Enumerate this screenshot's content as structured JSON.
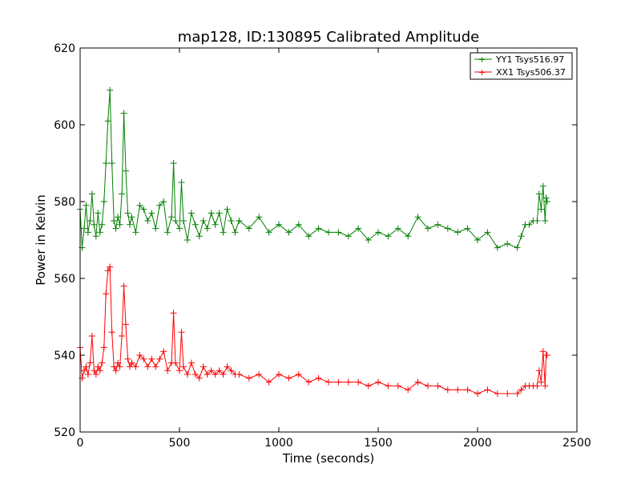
{
  "chart_data": {
    "type": "line",
    "title": "map128, ID:130895 Calibrated Amplitude",
    "xlabel": "Time (seconds)",
    "ylabel": "Power in Kelvin",
    "xlim": [
      0,
      2500
    ],
    "ylim": [
      520,
      620
    ],
    "xticks": [
      0,
      500,
      1000,
      1500,
      2000,
      2500
    ],
    "yticks": [
      520,
      540,
      560,
      580,
      600,
      620
    ],
    "grid": false,
    "legend_position": "top-right",
    "series": [
      {
        "name": "YY1 Tsys516.97",
        "color": "#008000",
        "marker": "+",
        "points": [
          [
            0,
            578
          ],
          [
            10,
            568
          ],
          [
            20,
            573
          ],
          [
            30,
            579
          ],
          [
            40,
            572
          ],
          [
            50,
            575
          ],
          [
            60,
            582
          ],
          [
            70,
            574
          ],
          [
            80,
            571
          ],
          [
            90,
            577
          ],
          [
            100,
            572
          ],
          [
            110,
            574
          ],
          [
            120,
            580
          ],
          [
            130,
            590
          ],
          [
            140,
            601
          ],
          [
            150,
            609
          ],
          [
            160,
            590
          ],
          [
            170,
            575
          ],
          [
            180,
            573
          ],
          [
            190,
            576
          ],
          [
            200,
            574
          ],
          [
            210,
            582
          ],
          [
            220,
            603
          ],
          [
            230,
            588
          ],
          [
            240,
            577
          ],
          [
            250,
            574
          ],
          [
            260,
            576
          ],
          [
            280,
            572
          ],
          [
            300,
            579
          ],
          [
            320,
            578
          ],
          [
            340,
            575
          ],
          [
            360,
            577
          ],
          [
            380,
            573
          ],
          [
            400,
            579
          ],
          [
            420,
            580
          ],
          [
            440,
            572
          ],
          [
            460,
            576
          ],
          [
            470,
            590
          ],
          [
            480,
            575
          ],
          [
            500,
            573
          ],
          [
            510,
            585
          ],
          [
            520,
            575
          ],
          [
            540,
            570
          ],
          [
            560,
            577
          ],
          [
            580,
            574
          ],
          [
            600,
            571
          ],
          [
            620,
            575
          ],
          [
            640,
            573
          ],
          [
            660,
            577
          ],
          [
            680,
            574
          ],
          [
            700,
            577
          ],
          [
            720,
            572
          ],
          [
            740,
            578
          ],
          [
            760,
            575
          ],
          [
            780,
            572
          ],
          [
            800,
            575
          ],
          [
            850,
            573
          ],
          [
            900,
            576
          ],
          [
            950,
            572
          ],
          [
            1000,
            574
          ],
          [
            1050,
            572
          ],
          [
            1100,
            574
          ],
          [
            1150,
            571
          ],
          [
            1200,
            573
          ],
          [
            1250,
            572
          ],
          [
            1300,
            572
          ],
          [
            1350,
            571
          ],
          [
            1400,
            573
          ],
          [
            1450,
            570
          ],
          [
            1500,
            572
          ],
          [
            1550,
            571
          ],
          [
            1600,
            573
          ],
          [
            1650,
            571
          ],
          [
            1700,
            576
          ],
          [
            1750,
            573
          ],
          [
            1800,
            574
          ],
          [
            1850,
            573
          ],
          [
            1900,
            572
          ],
          [
            1950,
            573
          ],
          [
            2000,
            570
          ],
          [
            2050,
            572
          ],
          [
            2100,
            568
          ],
          [
            2150,
            569
          ],
          [
            2200,
            568
          ],
          [
            2220,
            571
          ],
          [
            2240,
            574
          ],
          [
            2260,
            574
          ],
          [
            2280,
            575
          ],
          [
            2300,
            575
          ],
          [
            2310,
            582
          ],
          [
            2320,
            578
          ],
          [
            2330,
            584
          ],
          [
            2340,
            575
          ],
          [
            2345,
            581
          ],
          [
            2350,
            580
          ]
        ]
      },
      {
        "name": "XX1 Tsys506.37",
        "color": "#ff0000",
        "marker": "+",
        "points": [
          [
            0,
            542
          ],
          [
            10,
            534
          ],
          [
            20,
            536
          ],
          [
            30,
            537
          ],
          [
            40,
            535
          ],
          [
            50,
            538
          ],
          [
            60,
            545
          ],
          [
            70,
            536
          ],
          [
            80,
            535
          ],
          [
            90,
            537
          ],
          [
            100,
            536
          ],
          [
            110,
            538
          ],
          [
            120,
            542
          ],
          [
            130,
            556
          ],
          [
            140,
            562
          ],
          [
            150,
            563
          ],
          [
            160,
            546
          ],
          [
            170,
            537
          ],
          [
            180,
            536
          ],
          [
            190,
            538
          ],
          [
            200,
            537
          ],
          [
            210,
            545
          ],
          [
            220,
            558
          ],
          [
            230,
            548
          ],
          [
            240,
            539
          ],
          [
            250,
            537
          ],
          [
            260,
            538
          ],
          [
            280,
            537
          ],
          [
            300,
            540
          ],
          [
            320,
            539
          ],
          [
            340,
            537
          ],
          [
            360,
            539
          ],
          [
            380,
            537
          ],
          [
            400,
            539
          ],
          [
            420,
            541
          ],
          [
            440,
            536
          ],
          [
            460,
            538
          ],
          [
            470,
            551
          ],
          [
            480,
            538
          ],
          [
            500,
            536
          ],
          [
            510,
            546
          ],
          [
            520,
            537
          ],
          [
            540,
            535
          ],
          [
            560,
            538
          ],
          [
            580,
            535
          ],
          [
            600,
            534
          ],
          [
            620,
            537
          ],
          [
            640,
            535
          ],
          [
            660,
            536
          ],
          [
            680,
            535
          ],
          [
            700,
            536
          ],
          [
            720,
            535
          ],
          [
            740,
            537
          ],
          [
            760,
            536
          ],
          [
            780,
            535
          ],
          [
            800,
            535
          ],
          [
            850,
            534
          ],
          [
            900,
            535
          ],
          [
            950,
            533
          ],
          [
            1000,
            535
          ],
          [
            1050,
            534
          ],
          [
            1100,
            535
          ],
          [
            1150,
            533
          ],
          [
            1200,
            534
          ],
          [
            1250,
            533
          ],
          [
            1300,
            533
          ],
          [
            1350,
            533
          ],
          [
            1400,
            533
          ],
          [
            1450,
            532
          ],
          [
            1500,
            533
          ],
          [
            1550,
            532
          ],
          [
            1600,
            532
          ],
          [
            1650,
            531
          ],
          [
            1700,
            533
          ],
          [
            1750,
            532
          ],
          [
            1800,
            532
          ],
          [
            1850,
            531
          ],
          [
            1900,
            531
          ],
          [
            1950,
            531
          ],
          [
            2000,
            530
          ],
          [
            2050,
            531
          ],
          [
            2100,
            530
          ],
          [
            2150,
            530
          ],
          [
            2200,
            530
          ],
          [
            2220,
            531
          ],
          [
            2240,
            532
          ],
          [
            2260,
            532
          ],
          [
            2280,
            532
          ],
          [
            2300,
            532
          ],
          [
            2310,
            536
          ],
          [
            2320,
            533
          ],
          [
            2330,
            541
          ],
          [
            2340,
            532
          ],
          [
            2345,
            540
          ],
          [
            2350,
            540
          ]
        ]
      }
    ]
  }
}
